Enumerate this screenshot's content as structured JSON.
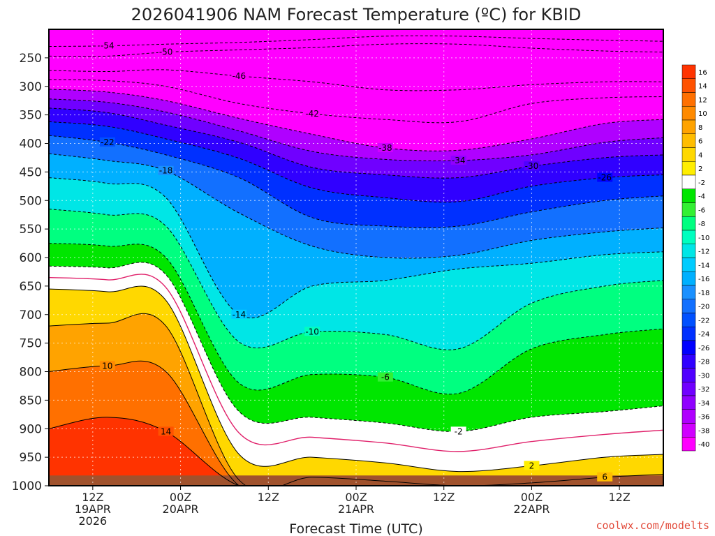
{
  "chart_data": {
    "type": "heatmap",
    "title": "2026041906 NAM Forecast Temperature (ºC) for KBID",
    "xlabel": "Forecast Time (UTC)",
    "ylabel": "",
    "credit": "coolwx.com/modelts",
    "y_ticks": [
      250,
      300,
      350,
      400,
      450,
      500,
      550,
      600,
      650,
      700,
      750,
      800,
      850,
      900,
      950,
      1000
    ],
    "y_range_hpa": [
      200,
      1000
    ],
    "x_ticks": [
      {
        "hour": 6,
        "label1": "12Z",
        "label2": "19APR",
        "label3": "2026"
      },
      {
        "hour": 18,
        "label1": "00Z",
        "label2": "20APR",
        "label3": ""
      },
      {
        "hour": 30,
        "label1": "12Z",
        "label2": "",
        "label3": ""
      },
      {
        "hour": 42,
        "label1": "00Z",
        "label2": "21APR",
        "label3": ""
      },
      {
        "hour": 54,
        "label1": "12Z",
        "label2": "",
        "label3": ""
      },
      {
        "hour": 66,
        "label1": "00Z",
        "label2": "22APR",
        "label3": ""
      },
      {
        "hour": 78,
        "label1": "12Z",
        "label2": "",
        "label3": ""
      }
    ],
    "x_range_hours": [
      0,
      84
    ],
    "colorbar": {
      "labels": [
        "16",
        "14",
        "12",
        "10",
        "8",
        "6",
        "4",
        "2",
        "-2",
        "-4",
        "-6",
        "-8",
        "-10",
        "-12",
        "-14",
        "-16",
        "-18",
        "-20",
        "-22",
        "-24",
        "-26",
        "-28",
        "-30",
        "-32",
        "-34",
        "-36",
        "-38",
        "-40"
      ],
      "colors": [
        "#ff3300",
        "#ff5200",
        "#ff7000",
        "#ff8a00",
        "#ffa300",
        "#ffbd00",
        "#ffd800",
        "#ffee00",
        "#ffffff",
        "#00e600",
        "#33f033",
        "#00ff80",
        "#00ffbf",
        "#00e6e6",
        "#00ccff",
        "#00b0ff",
        "#1a90ff",
        "#1270ff",
        "#0050ff",
        "#0030ff",
        "#0000ff",
        "#3000ff",
        "#5000ff",
        "#7000ff",
        "#9000ff",
        "#b000ff",
        "#d000ff",
        "#ff00ff"
      ]
    },
    "contours": [
      {
        "value": -54,
        "label": "-54",
        "hours": [
          0,
          8,
          16,
          26,
          36,
          46,
          56,
          66,
          76,
          84
        ],
        "levels": [
          230,
          229,
          226,
          223,
          218,
          212,
          212,
          216,
          219,
          221
        ]
      },
      {
        "value": -50,
        "label": "-50",
        "hours": [
          0,
          8,
          16,
          26,
          36,
          46,
          56,
          66,
          76,
          84
        ],
        "levels": [
          247,
          247,
          240,
          236,
          232,
          226,
          226,
          233,
          238,
          240
        ]
      },
      {
        "value": -46,
        "label": "-46",
        "hours": [
          0,
          8,
          16,
          26,
          36,
          46,
          56,
          66,
          76,
          84
        ],
        "levels": [
          272,
          274,
          271,
          282,
          292,
          306,
          306,
          297,
          292,
          292
        ]
      },
      {
        "value": -42,
        "label": "-42",
        "hours": [
          0,
          8,
          16,
          26,
          36,
          46,
          56,
          66,
          76,
          84
        ],
        "levels": [
          288,
          290,
          300,
          330,
          348,
          358,
          362,
          330,
          320,
          318
        ]
      },
      {
        "value": -38,
        "label": "-38",
        "hours": [
          0,
          8,
          16,
          26,
          36,
          46,
          56,
          66,
          76,
          84
        ],
        "levels": [
          305,
          310,
          325,
          356,
          384,
          408,
          412,
          392,
          365,
          358
        ]
      },
      {
        "value": -34,
        "label": "-34",
        "hours": [
          0,
          8,
          16,
          26,
          36,
          46,
          56,
          66,
          76,
          84
        ],
        "levels": [
          322,
          328,
          345,
          378,
          414,
          428,
          430,
          420,
          398,
          390
        ]
      },
      {
        "value": -30,
        "label": "-30",
        "hours": [
          0,
          8,
          16,
          26,
          36,
          46,
          56,
          66,
          76,
          84
        ],
        "levels": [
          338,
          346,
          368,
          398,
          442,
          455,
          460,
          440,
          425,
          420
        ]
      },
      {
        "value": -26,
        "label": "-26",
        "hours": [
          0,
          8,
          16,
          26,
          36,
          46,
          56,
          66,
          76,
          84
        ],
        "levels": [
          362,
          370,
          392,
          426,
          478,
          495,
          502,
          475,
          460,
          455
        ]
      },
      {
        "value": -22,
        "label": "-22",
        "hours": [
          0,
          8,
          16,
          26,
          36,
          46,
          56,
          66,
          76,
          84
        ],
        "levels": [
          386,
          398,
          420,
          460,
          530,
          545,
          545,
          520,
          500,
          492
        ]
      },
      {
        "value": -18,
        "label": "-18",
        "hours": [
          0,
          8,
          16,
          26,
          36,
          46,
          56,
          66,
          76,
          84
        ],
        "levels": [
          418,
          430,
          448,
          522,
          580,
          600,
          596,
          570,
          555,
          548
        ]
      },
      {
        "value": -14,
        "label": "-14",
        "hours": [
          0,
          8,
          16,
          26,
          36,
          46,
          56,
          66,
          76,
          84
        ],
        "levels": [
          460,
          470,
          495,
          700,
          650,
          640,
          620,
          610,
          595,
          590
        ]
      },
      {
        "value": -10,
        "label": "-10",
        "hours": [
          0,
          8,
          16,
          26,
          36,
          46,
          56,
          66,
          76,
          84
        ],
        "levels": [
          515,
          525,
          545,
          748,
          730,
          735,
          760,
          680,
          650,
          640
        ]
      },
      {
        "value": -6,
        "label": "-6",
        "hours": [
          0,
          8,
          16,
          26,
          36,
          46,
          56,
          66,
          76,
          84
        ],
        "levels": [
          575,
          580,
          600,
          820,
          805,
          810,
          838,
          760,
          735,
          725
        ]
      },
      {
        "value": -2,
        "label": "-2",
        "hours": [
          0,
          8,
          16,
          26,
          36,
          46,
          56,
          66,
          76,
          84
        ],
        "levels": [
          615,
          618,
          630,
          870,
          880,
          890,
          905,
          880,
          870,
          860
        ]
      },
      {
        "value": 2,
        "label": "2",
        "hours": [
          0,
          8,
          16,
          26,
          36,
          46,
          56,
          66,
          76,
          84
        ],
        "levels": [
          655,
          660,
          675,
          945,
          950,
          960,
          975,
          965,
          950,
          945
        ]
      },
      {
        "value": 6,
        "label": "6",
        "hours": [
          0,
          8,
          16,
          26,
          36,
          46,
          56,
          66,
          76,
          84
        ],
        "levels": [
          720,
          715,
          720,
          990,
          985,
          992,
          1000,
          995,
          985,
          980
        ]
      },
      {
        "value": 10,
        "label": "10",
        "hours": [
          0,
          8,
          16,
          26,
          36,
          46,
          56,
          66,
          76,
          84
        ],
        "levels": [
          800,
          790,
          800,
          1000,
          1000,
          1000,
          1000,
          1000,
          1000,
          1000
        ]
      },
      {
        "value": 14,
        "label": "14",
        "hours": [
          0,
          8,
          16,
          26,
          36,
          46,
          56,
          66,
          76,
          84
        ],
        "levels": [
          900,
          880,
          905,
          1000,
          1000,
          1000,
          1000,
          1000,
          1000,
          1000
        ]
      }
    ]
  }
}
